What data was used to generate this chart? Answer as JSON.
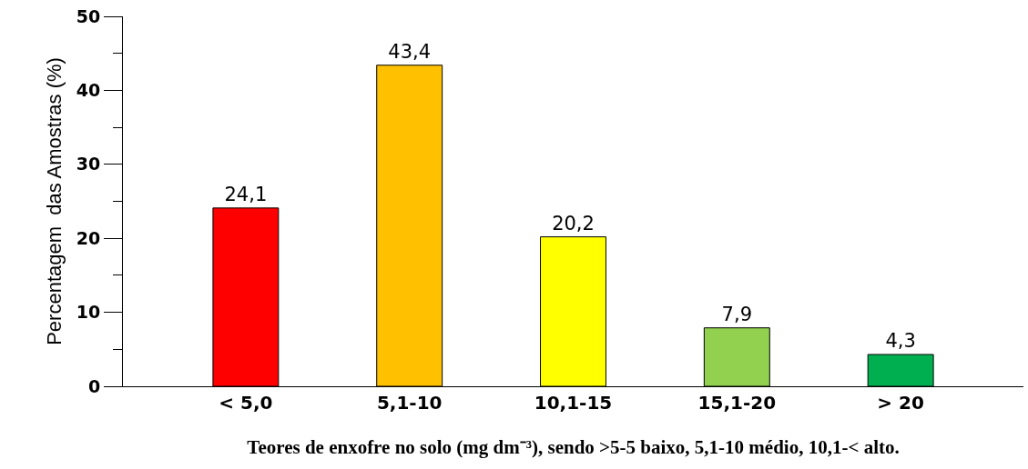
{
  "chart_data": {
    "type": "bar",
    "xlabel": "Teores de enxofre no solo (mg dm⁻³), sendo >5-5 baixo, 5,1-10 médio, 10,1-< alto.",
    "ylabel": "Percentagem  das Amostras (%)",
    "categories": [
      "< 5,0",
      "5,1-10",
      "10,1-15",
      "15,1-20",
      "> 20"
    ],
    "values": [
      24.1,
      43.4,
      20.2,
      7.9,
      4.3
    ],
    "value_labels": [
      "24,1",
      "43,4",
      "20,2",
      "7,9",
      "4,3"
    ],
    "colors": [
      "#ff0000",
      "#ffc000",
      "#ffff00",
      "#92d050",
      "#00b050"
    ],
    "ylim": [
      0,
      50
    ],
    "yticks": [
      0,
      {
        "value": 5,
        "label": null
      },
      10,
      {
        "value": 15,
        "label": null
      },
      20,
      {
        "value": 25,
        "label": null
      },
      30,
      {
        "value": 35,
        "label": null
      },
      40,
      {
        "value": 45,
        "label": null
      },
      50
    ],
    "tick_labels": true
  }
}
